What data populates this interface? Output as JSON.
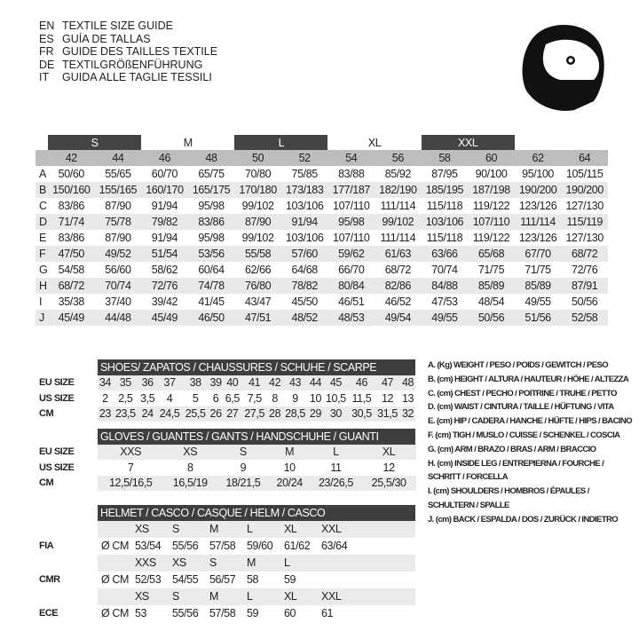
{
  "titles": [
    {
      "code": "EN",
      "text": "TEXTILE SIZE GUIDE"
    },
    {
      "code": "ES",
      "text": "GUÍA DE TALLAS"
    },
    {
      "code": "FR",
      "text": "GUIDE DES TAILLES TEXTILE"
    },
    {
      "code": "DE",
      "text": "TEXTILGRÖßENFÜHRUNG"
    },
    {
      "code": "IT",
      "text": "GUIDA ALLE TAGLIE TESSILI"
    }
  ],
  "icon": "helmet-icon",
  "textile": {
    "bands": [
      "S",
      "M",
      "L",
      "XL",
      "XXL"
    ],
    "sizes": [
      "42",
      "44",
      "46",
      "48",
      "50",
      "52",
      "54",
      "56",
      "58",
      "60",
      "62",
      "64"
    ],
    "rows": [
      {
        "label": "A",
        "values": [
          "50/60",
          "55/65",
          "60/70",
          "65/75",
          "70/80",
          "75/85",
          "83/88",
          "85/92",
          "87/95",
          "90/100",
          "95/100",
          "105/115"
        ]
      },
      {
        "label": "B",
        "values": [
          "150/160",
          "155/165",
          "160/170",
          "165/175",
          "170/180",
          "173/183",
          "177/187",
          "182/190",
          "185/195",
          "187/198",
          "190/200",
          "190/200"
        ]
      },
      {
        "label": "C",
        "values": [
          "83/86",
          "87/90",
          "91/94",
          "95/98",
          "99/102",
          "103/106",
          "107/110",
          "111/114",
          "115/118",
          "119/122",
          "123/126",
          "127/130"
        ]
      },
      {
        "label": "D",
        "values": [
          "71/74",
          "75/78",
          "79/82",
          "83/86",
          "87/90",
          "91/94",
          "95/98",
          "99/102",
          "103/106",
          "107/110",
          "111/114",
          "115/119"
        ]
      },
      {
        "label": "E",
        "values": [
          "83/86",
          "87/90",
          "91/94",
          "95/98",
          "99/102",
          "103/106",
          "107/110",
          "111/114",
          "115/118",
          "119/122",
          "123/126",
          "127/130"
        ]
      },
      {
        "label": "F",
        "values": [
          "47/50",
          "49/52",
          "51/54",
          "53/56",
          "55/58",
          "57/60",
          "59/62",
          "61/63",
          "63/66",
          "65/68",
          "67/70",
          "68/72"
        ]
      },
      {
        "label": "G",
        "values": [
          "54/58",
          "56/60",
          "58/62",
          "60/64",
          "62/66",
          "64/68",
          "66/70",
          "68/72",
          "70/74",
          "71/75",
          "71/75",
          "72/76"
        ]
      },
      {
        "label": "H",
        "values": [
          "68/72",
          "70/74",
          "72/76",
          "74/78",
          "76/80",
          "78/82",
          "80/84",
          "82/86",
          "84/88",
          "85/89",
          "85/89",
          "87/91"
        ]
      },
      {
        "label": "I",
        "values": [
          "35/38",
          "37/40",
          "39/42",
          "41/45",
          "43/47",
          "45/50",
          "46/51",
          "46/52",
          "47/53",
          "48/54",
          "49/55",
          "50/56"
        ]
      },
      {
        "label": "J",
        "values": [
          "45/49",
          "44/48",
          "45/49",
          "46/50",
          "47/51",
          "48/52",
          "48/53",
          "49/54",
          "49/55",
          "50/56",
          "51/56",
          "52/58"
        ]
      }
    ]
  },
  "shoes": {
    "title": "SHOES/ ZAPATOS / CHAUSSURES / SCHUHE / SCARPE",
    "rows": [
      {
        "label": "EU SIZE",
        "values": [
          "34",
          "35",
          "36",
          "37",
          "38",
          "39",
          "40",
          "41",
          "42",
          "43",
          "44",
          "45",
          "46",
          "47",
          "48"
        ]
      },
      {
        "label": "US SIZE",
        "values": [
          "2",
          "2,5",
          "3,5",
          "4",
          "5",
          "6",
          "6,5",
          "7,5",
          "8",
          "9",
          "10",
          "10,5",
          "11,5",
          "12",
          "13"
        ]
      },
      {
        "label": "CM",
        "values": [
          "23",
          "23,5",
          "24",
          "24,5",
          "25,5",
          "26",
          "27",
          "27,5",
          "28",
          "28,5",
          "29",
          "30",
          "30,5",
          "31,5",
          "32"
        ]
      }
    ]
  },
  "gloves": {
    "title": "GLOVES / GUANTES / GANTS / HANDSCHUHE / GUANTI",
    "rows": [
      {
        "label": "EU SIZE",
        "values": [
          "XXS",
          "XS",
          "S",
          "M",
          "L",
          "XL"
        ]
      },
      {
        "label": "US SIZE",
        "values": [
          "7",
          "8",
          "9",
          "10",
          "11",
          "12"
        ]
      },
      {
        "label": "CM",
        "values": [
          "12,5/16,5",
          "16,5/19",
          "18/21,5",
          "20/24",
          "23/26,5",
          "25,5/30"
        ]
      }
    ]
  },
  "helmet": {
    "title": "HELMET / CASCO / CASQUE / HELM / CASCO",
    "unit": "Ø CM",
    "groups": [
      {
        "label": "FIA",
        "sizes": [
          "XS",
          "S",
          "M",
          "L",
          "XL",
          "XXL"
        ],
        "values": [
          "53/54",
          "55/56",
          "57/58",
          "59/60",
          "61/62",
          "63/64"
        ]
      },
      {
        "label": "CMR",
        "sizes": [
          "XXS",
          "XS",
          "S",
          "M",
          "L",
          ""
        ],
        "values": [
          "52/53",
          "54/55",
          "56/57",
          "58",
          "59",
          ""
        ]
      },
      {
        "label": "ECE",
        "sizes": [
          "XS",
          "S",
          "M",
          "L",
          "XL",
          "XXL"
        ],
        "values": [
          "53",
          "55/56",
          "57/58",
          "59",
          "60",
          "61"
        ]
      }
    ]
  },
  "legend": [
    "A. (Kg) WEIGHT / PESO / POIDS / GEWITCH / PESO",
    "B. (cm) HEIGHT / ALTURA / HAUTEUR / HÖHE / ALTEZZA",
    "C. (cm) CHEST / PECHO / POITRINE / TRUHE / PETTO",
    "D. (cm) WAIST / CINTURA / TAILLE / HÜFTUNG / VITA",
    "E. (cm) HIP / CADERA / HANCHE / HÜFTE / HIPS /  BACINO",
    "F.  (cm) TIGH / MUSLO / CUISSE / SCHENKEL / COSCIA",
    "G. (cm) ARM  / BRAZO / BRAS / ARM / BRACCIO",
    "H. (cm) INSIDE LEG / ENTREPIERNA / FOURCHE /",
    "SCHRITT / FORCELLA",
    "I.  (cm) SHOULDERS / HOMBROS / ÉPAULES /",
    "SCHULTERN / SPALLE",
    "J. (cm) BACK / ESPALDA / DOS / ZURÜCK / INDIETRO"
  ]
}
